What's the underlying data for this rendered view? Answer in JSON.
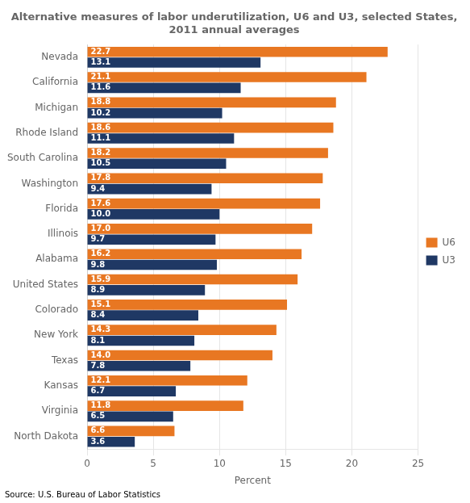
{
  "chart_data": {
    "type": "bar",
    "orientation": "horizontal",
    "title": "Alternative measures of labor underutilization, U6 and U3, selected States,\n2011 annual averages",
    "categories": [
      "Nevada",
      "California",
      "Michigan",
      "Rhode Island",
      "South Carolina",
      "Washington",
      "Florida",
      "Illinois",
      "Alabama",
      "United States",
      "Colorado",
      "New York",
      "Texas",
      "Kansas",
      "Virginia",
      "North Dakota"
    ],
    "series": [
      {
        "name": "U6",
        "color": "#E87722",
        "values": [
          22.7,
          21.1,
          18.8,
          18.6,
          18.2,
          17.8,
          17.6,
          17.0,
          16.2,
          15.9,
          15.1,
          14.3,
          14.0,
          12.1,
          11.8,
          6.6
        ],
        "value_labels": [
          "22.7",
          "21.1",
          "18.8",
          "18.6",
          "18.2",
          "17.8",
          "17.6",
          "17.0",
          "16.2",
          "15.9",
          "15.1",
          "14.3",
          "14.0",
          "12.1",
          "11.8",
          "6.6"
        ]
      },
      {
        "name": "U3",
        "color": "#1F3864",
        "values": [
          13.1,
          11.6,
          10.2,
          11.1,
          10.5,
          9.4,
          10.0,
          9.7,
          9.8,
          8.9,
          8.4,
          8.1,
          7.8,
          6.7,
          6.5,
          3.6
        ],
        "value_labels": [
          "13.1",
          "11.6",
          "10.2",
          "11.1",
          "10.5",
          "9.4",
          "10.0",
          "9.7",
          "9.8",
          "8.9",
          "8.4",
          "8.1",
          "7.8",
          "6.7",
          "6.5",
          "3.6"
        ]
      }
    ],
    "xlabel": "Percent",
    "xlim": [
      0,
      25
    ],
    "xticks": [
      0,
      5,
      10,
      15,
      20,
      25
    ],
    "grid": true,
    "legend": "right",
    "data_labels": true,
    "annotation": "Source: U.S. Bureau of Labor Statistics"
  }
}
